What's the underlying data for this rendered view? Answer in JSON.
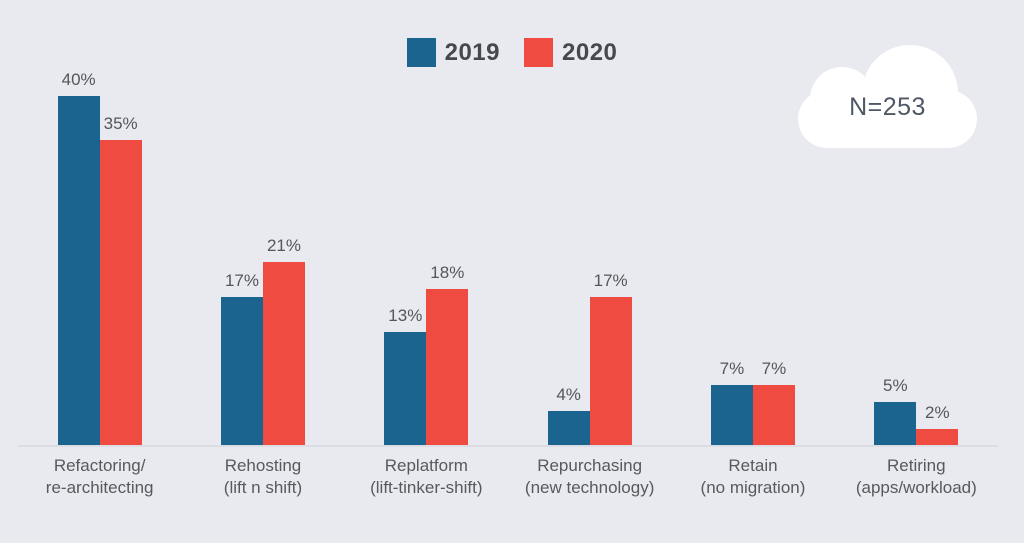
{
  "legend": [
    {
      "label": "2019",
      "color": "#1b6490"
    },
    {
      "label": "2020",
      "color": "#ef4b41"
    }
  ],
  "annotation": {
    "text": "N=253"
  },
  "colors": {
    "background": "#e9e9f0",
    "series_2019": "#1b6490",
    "series_2020": "#ef4b41",
    "text": "#55565a",
    "axis_line": "#dcdde4",
    "cloud_fill": "#ffffff"
  },
  "chart_data": {
    "type": "bar",
    "title": "",
    "xlabel": "",
    "ylabel": "",
    "value_suffix": "%",
    "ylim": [
      0,
      45
    ],
    "grid": false,
    "legend_position": "top-center",
    "categories": [
      [
        "Refactoring/",
        "re-architecting"
      ],
      [
        "Rehosting",
        "(lift n shift)"
      ],
      [
        "Replatform",
        "(lift-tinker-shift)"
      ],
      [
        "Repurchasing",
        "(new technology)"
      ],
      [
        "Retain",
        "(no migration)"
      ],
      [
        "Retiring",
        "(apps/workload)"
      ]
    ],
    "series": [
      {
        "name": "2019",
        "color": "#1b6490",
        "values": [
          40,
          17,
          13,
          4,
          7,
          5
        ]
      },
      {
        "name": "2020",
        "color": "#ef4b41",
        "values": [
          35,
          21,
          18,
          17,
          7,
          2
        ]
      }
    ],
    "sample_size": "N=253"
  }
}
